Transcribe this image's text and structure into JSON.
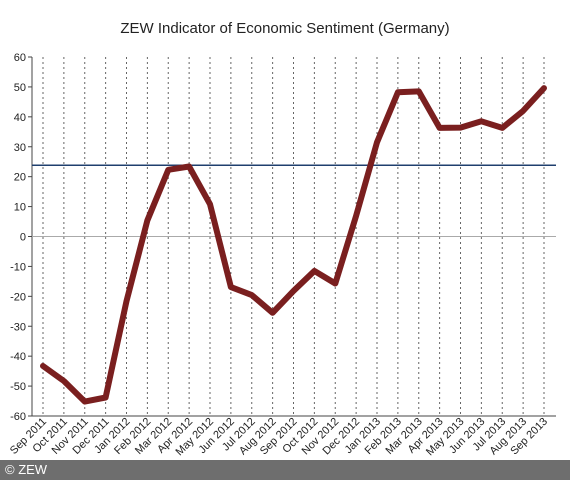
{
  "colors": {
    "series": "#7a1f1f",
    "reference_line": "#1f3f6e",
    "footer_bg": "#6e6e6e"
  },
  "credit": "© ZEW",
  "chart_data": {
    "type": "line",
    "title": "ZEW Indicator of Economic Sentiment (Germany)",
    "xlabel": "",
    "ylabel": "",
    "ylim": [
      -60,
      60
    ],
    "yticks": [
      -60,
      -50,
      -40,
      -30,
      -20,
      -10,
      0,
      10,
      20,
      30,
      40,
      50,
      60
    ],
    "grid": "vertical dotted",
    "categories": [
      "Sep 2011",
      "Oct 2011",
      "Nov 2011",
      "Dec 2011",
      "Jan 2012",
      "Feb 2012",
      "Mar 2012",
      "Apr 2012",
      "May 2012",
      "Jun 2012",
      "Jul 2012",
      "Aug 2012",
      "Sep 2012",
      "Oct 2012",
      "Nov 2012",
      "Dec 2012",
      "Jan 2013",
      "Feb 2013",
      "Mar 2013",
      "Apr 2013",
      "May 2013",
      "Jun 2013",
      "Jul 2013",
      "Aug 2013",
      "Sep 2013"
    ],
    "series": [
      {
        "values": [
          -43.3,
          -48.3,
          -55.2,
          -53.8,
          -21.6,
          5.4,
          22.3,
          23.4,
          10.8,
          -16.9,
          -19.6,
          -25.5,
          -18.2,
          -11.5,
          -15.7,
          6.9,
          31.5,
          48.2,
          48.5,
          36.3,
          36.4,
          38.5,
          36.3,
          42.0,
          49.6
        ]
      }
    ],
    "reference_line": 23.8
  }
}
